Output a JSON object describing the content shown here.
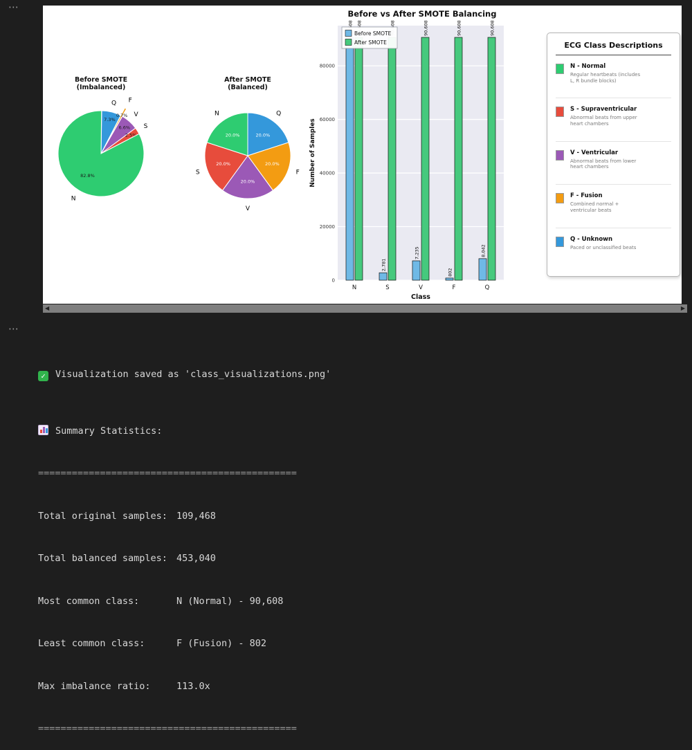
{
  "ui": {
    "ellipsis": "⋯",
    "scroll_left": "◀",
    "scroll_right": "▶"
  },
  "chart_data": [
    {
      "type": "pie",
      "title_line1": "Before SMOTE",
      "title_line2": "(Imbalanced)",
      "start_angle": 89,
      "pct_label_color": "#1a1a1a",
      "slices": [
        {
          "label": "Q",
          "pct": 7.3,
          "color": "#3498db"
        },
        {
          "label": "F",
          "pct": 0.7,
          "color": "#f39c12",
          "explode": 0.2
        },
        {
          "label": "V",
          "pct": 6.6,
          "color": "#9b59b6"
        },
        {
          "label": "S",
          "pct": 2.5,
          "color": "#e74c3c"
        },
        {
          "label": "N",
          "pct": 82.8,
          "color": "#2ecc71"
        }
      ],
      "counts": {
        "N": 90608,
        "S": 2781,
        "V": 7235,
        "F": 802,
        "Q": 8042
      }
    },
    {
      "type": "pie",
      "title_line1": "After SMOTE",
      "title_line2": "(Balanced)",
      "start_angle": 90,
      "pct_label_color": "#ffffff",
      "slices": [
        {
          "label": "Q",
          "pct": 20.0,
          "color": "#3498db"
        },
        {
          "label": "F",
          "pct": 20.0,
          "color": "#f39c12"
        },
        {
          "label": "V",
          "pct": 20.0,
          "color": "#9b59b6"
        },
        {
          "label": "S",
          "pct": 20.0,
          "color": "#e74c3c"
        },
        {
          "label": "N",
          "pct": 20.0,
          "color": "#2ecc71"
        }
      ],
      "counts": {
        "N": 90608,
        "S": 90608,
        "V": 90608,
        "F": 90608,
        "Q": 90608
      }
    },
    {
      "type": "bar",
      "title": "Before vs After SMOTE Balancing",
      "categories": [
        "N",
        "S",
        "V",
        "F",
        "Q"
      ],
      "series": [
        {
          "name": "Before SMOTE",
          "color": "#6fb9e6",
          "values": [
            90608,
            2781,
            7235,
            802,
            8042
          ]
        },
        {
          "name": "After SMOTE",
          "color": "#46c97d",
          "values": [
            90608,
            90608,
            90608,
            90608,
            90608
          ]
        }
      ],
      "xlabel": "Class",
      "ylabel": "Number of Samples",
      "yticks": [
        0,
        20000,
        40000,
        60000,
        80000
      ],
      "ylim": [
        0,
        95000
      ],
      "grid": true,
      "legend_position": "upper left",
      "plot_bg": "#eaeaf2"
    }
  ],
  "ecg_panel": {
    "title": "ECG Class Descriptions",
    "entries": [
      {
        "name": "N - Normal",
        "desc": "Regular heartbeats (includes L, R bundle blocks)",
        "color": "#2ecc71"
      },
      {
        "name": "S - Supraventricular",
        "desc": "Abnormal beats from upper heart chambers",
        "color": "#e74c3c"
      },
      {
        "name": "V - Ventricular",
        "desc": "Abnormal beats from lower heart chambers",
        "color": "#9b59b6"
      },
      {
        "name": "F - Fusion",
        "desc": "Combined normal + ventricular beats",
        "color": "#f39c12"
      },
      {
        "name": "Q - Unknown",
        "desc": "Paced or unclassified beats",
        "color": "#3498db"
      }
    ]
  },
  "terminal": {
    "check_glyph": "✓",
    "saved_text": "Visualization saved as 'class_visualizations.png'",
    "summary_title": "Summary Statistics:",
    "separator": "==============================================",
    "rows": [
      {
        "label": "Total original samples:",
        "value": "109,468"
      },
      {
        "label": "Total balanced samples:",
        "value": "453,040"
      },
      {
        "label": "Most common class:",
        "value": "N (Normal) - 90,608"
      },
      {
        "label": "Least common class:",
        "value": "F (Fusion) - 802"
      },
      {
        "label": "Max imbalance ratio:",
        "value": "113.0x"
      }
    ]
  }
}
